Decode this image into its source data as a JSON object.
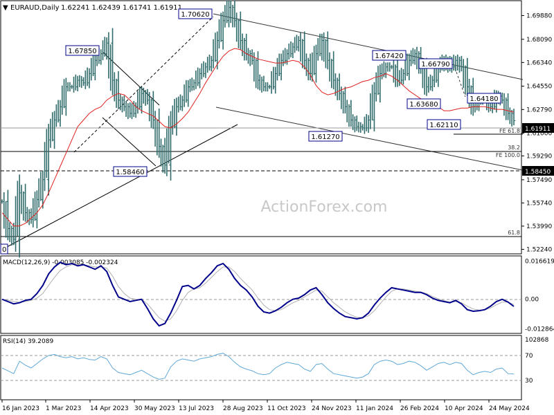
{
  "header": {
    "symbol": "EURAUD,Daily",
    "ohlc": "1.62241 1.62439 1.61741 1.61911"
  },
  "watermark": "ActionForex.com",
  "colors": {
    "bars": "#2f6b6b",
    "ma": "#e02020",
    "channel": "#333333",
    "macd": "#00008b",
    "signal": "#b0b0b0",
    "rsi": "#5fa8d8",
    "current_price_box": "#000000",
    "support_box": "#000000"
  },
  "chart_data": [
    {
      "type": "line",
      "panel": "price",
      "title": "EURAUD,Daily",
      "y_ticks": [
        "1.69880",
        "1.68090",
        "1.66340",
        "1.64550",
        "1.62790",
        "1.61000",
        "1.59290",
        "1.57490",
        "1.55740",
        "1.53990",
        "1.52240"
      ],
      "ylim": [
        1.5195,
        1.7095
      ],
      "x_ticks": [
        "16 Jan 2023",
        "1 Mar 2023",
        "14 Apr 2023",
        "30 May 2023",
        "13 Jul 2023",
        "28 Aug 2023",
        "11 Oct 2023",
        "24 Nov 2023",
        "11 Jan 2024",
        "26 Feb 2024",
        "10 Apr 2024",
        "24 May 2024"
      ],
      "current_price": "1.61911",
      "support_level": "1.58450",
      "swing_labels": [
        "1.70620",
        "1.67850",
        "1.67420",
        "1.66790",
        "1.64180",
        "1.63680",
        "1.62110",
        "1.61270",
        "1.58460",
        "0"
      ],
      "fib_labels": [
        "FE 61.8",
        "38.2",
        "FE 100.0",
        "61.8"
      ],
      "series": [
        {
          "name": "EURAUD",
          "values": [
            1.5585,
            1.538,
            1.53,
            1.565,
            1.55,
            1.545,
            1.56,
            1.575,
            1.605,
            1.62,
            1.63,
            1.645,
            1.645,
            1.65,
            1.648,
            1.655,
            1.665,
            1.67,
            1.678,
            1.65,
            1.635,
            1.63,
            1.625,
            1.63,
            1.64,
            1.635,
            1.62,
            1.6,
            1.586,
            1.615,
            1.63,
            1.635,
            1.645,
            1.648,
            1.655,
            1.66,
            1.665,
            1.68,
            1.695,
            1.705,
            1.695,
            1.68,
            1.67,
            1.665,
            1.65,
            1.645,
            1.645,
            1.655,
            1.665,
            1.67,
            1.675,
            1.68,
            1.665,
            1.655,
            1.67,
            1.68,
            1.665,
            1.65,
            1.64,
            1.63,
            1.62,
            1.615,
            1.614,
            1.62,
            1.64,
            1.655,
            1.66,
            1.66,
            1.65,
            1.655,
            1.665,
            1.67,
            1.66,
            1.645,
            1.65,
            1.66,
            1.665,
            1.66,
            1.665,
            1.66,
            1.645,
            1.63,
            1.635,
            1.635,
            1.63,
            1.638,
            1.635,
            1.625,
            1.6195
          ]
        },
        {
          "name": "MA",
          "values": [
            1.55,
            1.545,
            1.54,
            1.54,
            1.542,
            1.546,
            1.55,
            1.556,
            1.565,
            1.575,
            1.585,
            1.595,
            1.605,
            1.615,
            1.62,
            1.625,
            1.628,
            1.63,
            1.635,
            1.638,
            1.64,
            1.639,
            1.635,
            1.63,
            1.627,
            1.625,
            1.623,
            1.619,
            1.615,
            1.614,
            1.617,
            1.621,
            1.626,
            1.633,
            1.64,
            1.648,
            1.655,
            1.662,
            1.668,
            1.672,
            1.674,
            1.673,
            1.67,
            1.668,
            1.666,
            1.665,
            1.664,
            1.663,
            1.663,
            1.664,
            1.665,
            1.664,
            1.66,
            1.654,
            1.646,
            1.641,
            1.639,
            1.64,
            1.642,
            1.644,
            1.645,
            1.647,
            1.649,
            1.65,
            1.652,
            1.653,
            1.655,
            1.653,
            1.65,
            1.646,
            1.642,
            1.639,
            1.636,
            1.635,
            1.634,
            1.63,
            1.627,
            1.627,
            1.628,
            1.629,
            1.629,
            1.63,
            1.63,
            1.63,
            1.629,
            1.628,
            1.628,
            1.627,
            1.626
          ]
        }
      ]
    },
    {
      "type": "line",
      "panel": "macd",
      "title": "MACD(12,26,9) -0.003085 -0.002324",
      "y_ticks": [
        "0.016619",
        "0.00",
        "-0.012864"
      ],
      "ylim": [
        -0.0145,
        0.0182
      ],
      "series": [
        {
          "name": "MACD",
          "values": [
            0.0,
            -0.001,
            -0.002,
            -0.0015,
            -0.0005,
            0.0,
            0.0025,
            0.006,
            0.011,
            0.014,
            0.016,
            0.015,
            0.0155,
            0.0145,
            0.015,
            0.014,
            0.013,
            0.0145,
            0.012,
            0.006,
            0.001,
            0.0,
            -0.001,
            -0.0005,
            0.0,
            -0.004,
            -0.0085,
            -0.0115,
            -0.0105,
            -0.006,
            -0.0005,
            0.0055,
            0.006,
            0.0045,
            0.006,
            0.009,
            0.0115,
            0.0145,
            0.0155,
            0.013,
            0.009,
            0.006,
            0.004,
            0.001,
            -0.003,
            -0.0055,
            -0.006,
            -0.005,
            -0.0035,
            -0.0015,
            0.0,
            0.0005,
            0.002,
            0.004,
            0.005,
            0.002,
            -0.0015,
            -0.004,
            -0.006,
            -0.0075,
            -0.008,
            -0.0085,
            -0.008,
            -0.006,
            -0.0025,
            0.0005,
            0.003,
            0.005,
            0.0045,
            0.004,
            0.0035,
            0.003,
            0.003,
            0.002,
            0.0005,
            -0.0005,
            -0.001,
            -0.0015,
            -0.0005,
            -0.002,
            -0.0045,
            -0.0052,
            -0.005,
            -0.0045,
            -0.003,
            -0.001,
            0.0,
            -0.0012,
            -0.0031
          ]
        },
        {
          "name": "Signal",
          "values": [
            0.0,
            -0.0005,
            -0.001,
            -0.0013,
            -0.001,
            -0.0005,
            0.0005,
            0.0025,
            0.006,
            0.0095,
            0.0125,
            0.014,
            0.015,
            0.015,
            0.015,
            0.0145,
            0.014,
            0.014,
            0.0135,
            0.01,
            0.0055,
            0.0025,
            0.0005,
            0.0,
            0.0,
            -0.002,
            -0.005,
            -0.008,
            -0.0095,
            -0.0085,
            -0.005,
            -0.0005,
            0.003,
            0.0045,
            0.005,
            0.007,
            0.0095,
            0.012,
            0.014,
            0.014,
            0.012,
            0.009,
            0.0065,
            0.004,
            0.0005,
            -0.0025,
            -0.0045,
            -0.005,
            -0.0045,
            -0.003,
            -0.0015,
            -0.0005,
            0.001,
            0.0025,
            0.004,
            0.0035,
            0.001,
            -0.0015,
            -0.0035,
            -0.0055,
            -0.0068,
            -0.0078,
            -0.008,
            -0.0072,
            -0.005,
            -0.002,
            0.001,
            0.0035,
            0.0045,
            0.0045,
            0.004,
            0.0035,
            0.0032,
            0.0025,
            0.0012,
            0.0002,
            -0.0006,
            -0.0012,
            -0.001,
            -0.0015,
            -0.003,
            -0.0042,
            -0.0047,
            -0.0046,
            -0.0038,
            -0.0024,
            -0.0012,
            -0.0012,
            -0.0023
          ]
        }
      ]
    },
    {
      "type": "line",
      "panel": "rsi",
      "title": "RSI(14) 39.2089",
      "y_ticks": [
        "102868",
        "70",
        "30"
      ],
      "ylim": [
        -5,
        105
      ],
      "series": [
        {
          "name": "RSI",
          "values": [
            50,
            45,
            40,
            62,
            55,
            50,
            58,
            66,
            72,
            74,
            70,
            68,
            70,
            66,
            68,
            65,
            64,
            70,
            66,
            50,
            42,
            40,
            38,
            42,
            46,
            40,
            34,
            30,
            32,
            52,
            62,
            66,
            64,
            62,
            66,
            68,
            70,
            74,
            76,
            70,
            60,
            52,
            48,
            45,
            40,
            38,
            40,
            50,
            56,
            60,
            58,
            56,
            48,
            44,
            56,
            58,
            48,
            40,
            38,
            36,
            34,
            32,
            34,
            40,
            56,
            62,
            64,
            62,
            56,
            58,
            62,
            60,
            54,
            46,
            52,
            58,
            60,
            56,
            60,
            58,
            46,
            38,
            42,
            44,
            42,
            48,
            50,
            40,
            39.21
          ]
        }
      ]
    }
  ]
}
